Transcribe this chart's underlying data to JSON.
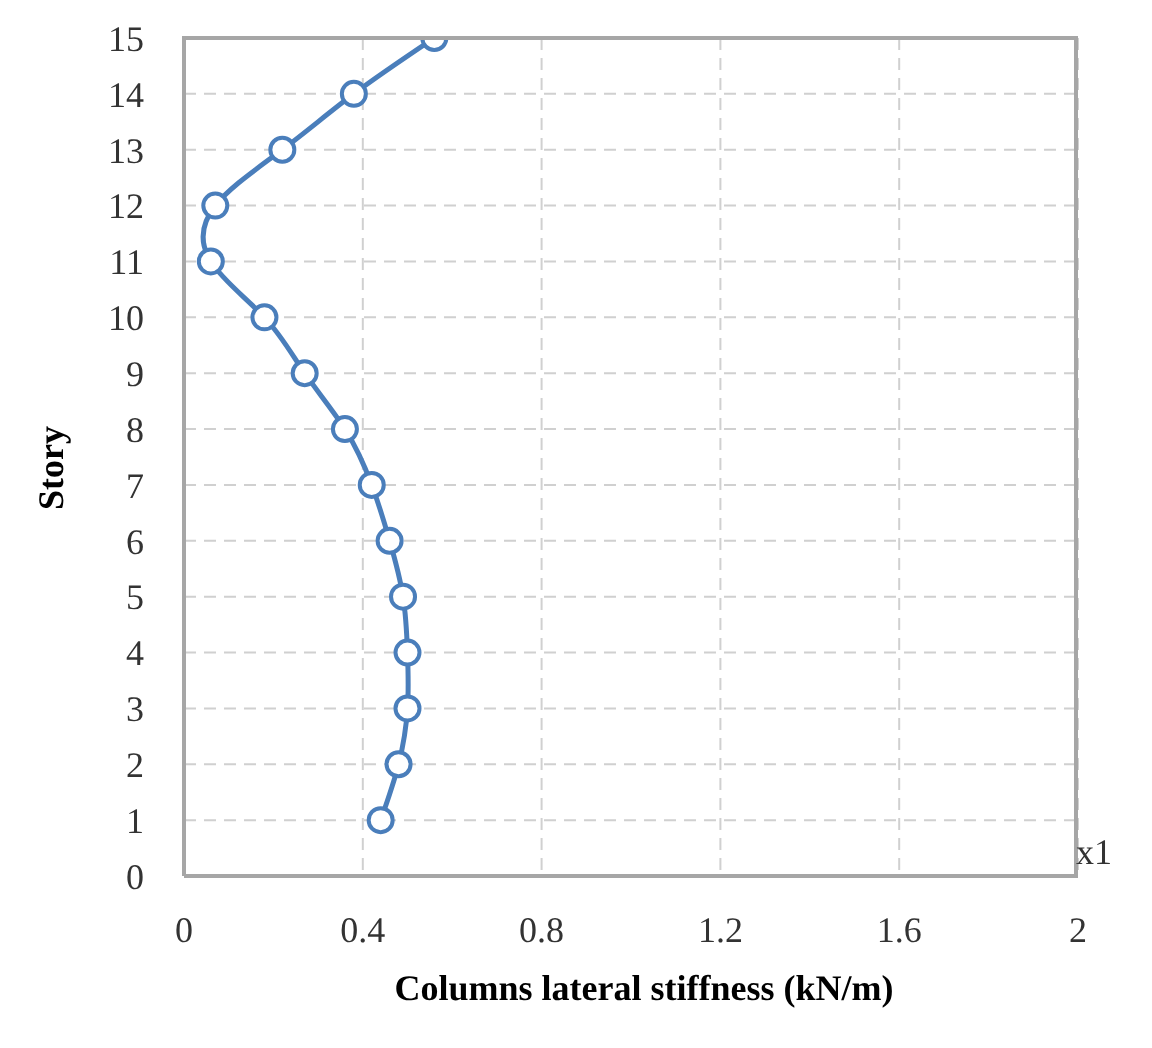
{
  "chart_data": {
    "type": "line",
    "xlabel": "Columns lateral stiffness (kN/m)",
    "ylabel": "Story",
    "annotations": [
      "x1"
    ],
    "x": [
      0.44,
      0.48,
      0.5,
      0.5,
      0.49,
      0.46,
      0.42,
      0.36,
      0.27,
      0.18,
      0.06,
      0.07,
      0.22,
      0.38,
      0.56
    ],
    "series": [
      {
        "color": "#4a7ebb",
        "values": [
          1,
          2,
          3,
          4,
          5,
          6,
          7,
          8,
          9,
          10,
          11,
          12,
          13,
          14,
          15
        ]
      }
    ],
    "xlim": [
      0,
      2
    ],
    "xticks": [
      0,
      0.4,
      0.8,
      1.2,
      1.6,
      2
    ],
    "ylim": [
      0,
      15
    ],
    "yticks": [
      0,
      1,
      2,
      3,
      4,
      5,
      6,
      7,
      8,
      9,
      10,
      11,
      12,
      13,
      14,
      15
    ],
    "grid": true,
    "marker": "circle",
    "line_style": "solid"
  }
}
